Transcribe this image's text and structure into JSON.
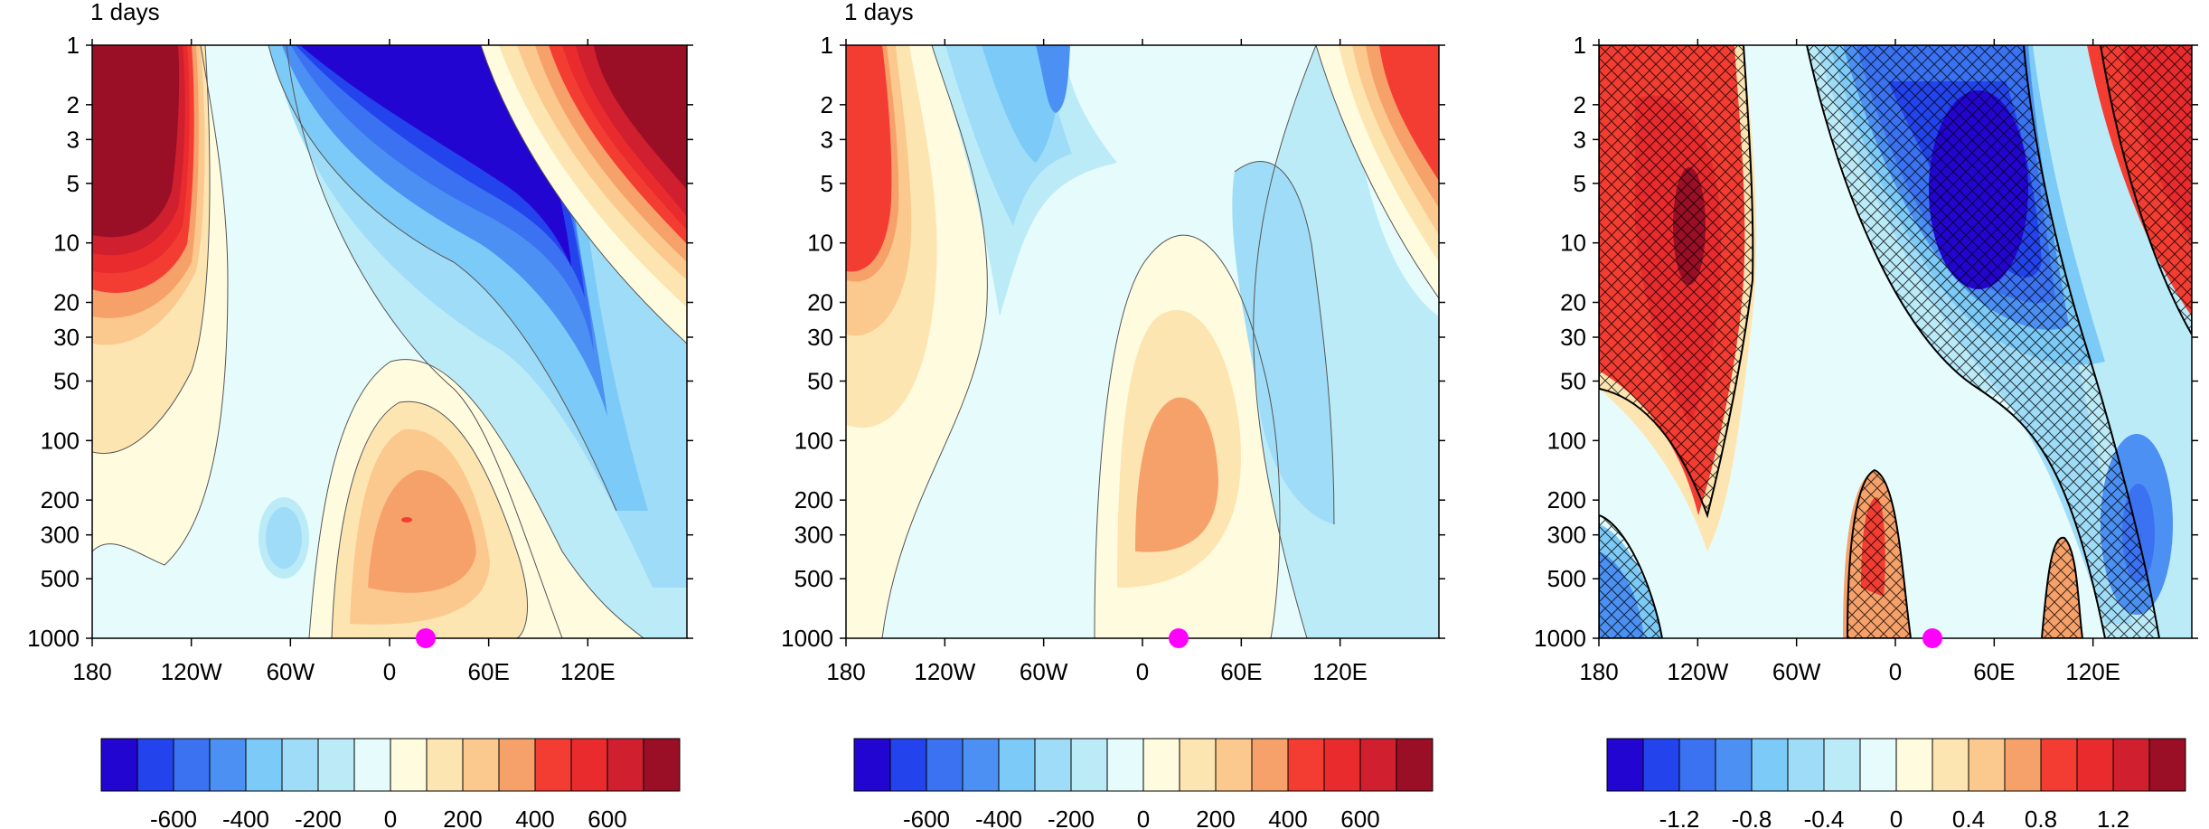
{
  "figure": {
    "colors": [
      "#2305d1",
      "#2343ed",
      "#3a72f2",
      "#4b90f2",
      "#7ccaf7",
      "#9fdcf7",
      "#bcebf8",
      "#e6fbfb",
      "#fffbdf",
      "#fde5b2",
      "#fbc98d",
      "#f7a16a",
      "#f43d32",
      "#e92b2e",
      "#d01f2e",
      "#9b0f26"
    ],
    "pressure_ticks": [
      "1",
      "2",
      "3",
      "5",
      "10",
      "20",
      "30",
      "50",
      "100",
      "200",
      "300",
      "500",
      "1000"
    ],
    "longitude_ticks": [
      "180",
      "120W",
      "60W",
      "0",
      "60E",
      "120E"
    ],
    "marker": {
      "color": "#ff00ff",
      "longitude_deg": 22,
      "pressure_hPa": 1000
    }
  },
  "chart_data": [
    {
      "type": "heatmap",
      "title": "1 days",
      "x_axis": {
        "ticks": [
          "180",
          "120W",
          "60W",
          "0",
          "60E",
          "120E"
        ],
        "range_deg": [
          -180,
          180
        ]
      },
      "y_axis": {
        "scale": "log",
        "reversed": true,
        "range_hPa": [
          1000,
          1
        ],
        "ticks": [
          "1",
          "2",
          "3",
          "5",
          "10",
          "20",
          "30",
          "50",
          "100",
          "200",
          "300",
          "500",
          "1000"
        ]
      },
      "colorbar": {
        "labels": [
          "-600",
          "-400",
          "-200",
          "0",
          "200",
          "400",
          "600"
        ]
      },
      "hatching": false
    },
    {
      "type": "heatmap",
      "title": "1 days",
      "x_axis": {
        "ticks": [
          "180",
          "120W",
          "60W",
          "0",
          "60E",
          "120E"
        ],
        "range_deg": [
          -180,
          180
        ]
      },
      "y_axis": {
        "scale": "log",
        "reversed": true,
        "range_hPa": [
          1000,
          1
        ],
        "ticks": [
          "1",
          "2",
          "3",
          "5",
          "10",
          "20",
          "30",
          "50",
          "100",
          "200",
          "300",
          "500",
          "1000"
        ]
      },
      "colorbar": {
        "labels": [
          "-600",
          "-400",
          "-200",
          "0",
          "200",
          "400",
          "600"
        ]
      },
      "hatching": false
    },
    {
      "type": "heatmap",
      "title": "",
      "x_axis": {
        "ticks": [
          "180",
          "120W",
          "60W",
          "0",
          "60E",
          "120E"
        ],
        "range_deg": [
          -180,
          180
        ]
      },
      "y_axis": {
        "scale": "log",
        "reversed": true,
        "range_hPa": [
          1000,
          1
        ],
        "ticks": [
          "1",
          "2",
          "3",
          "5",
          "10",
          "20",
          "30",
          "50",
          "100",
          "200",
          "300",
          "500",
          "1000"
        ]
      },
      "colorbar": {
        "labels": [
          "-1.2",
          "-0.8",
          "-0.4",
          "0",
          "0.4",
          "0.8",
          "1.2"
        ]
      },
      "hatching": true
    }
  ]
}
